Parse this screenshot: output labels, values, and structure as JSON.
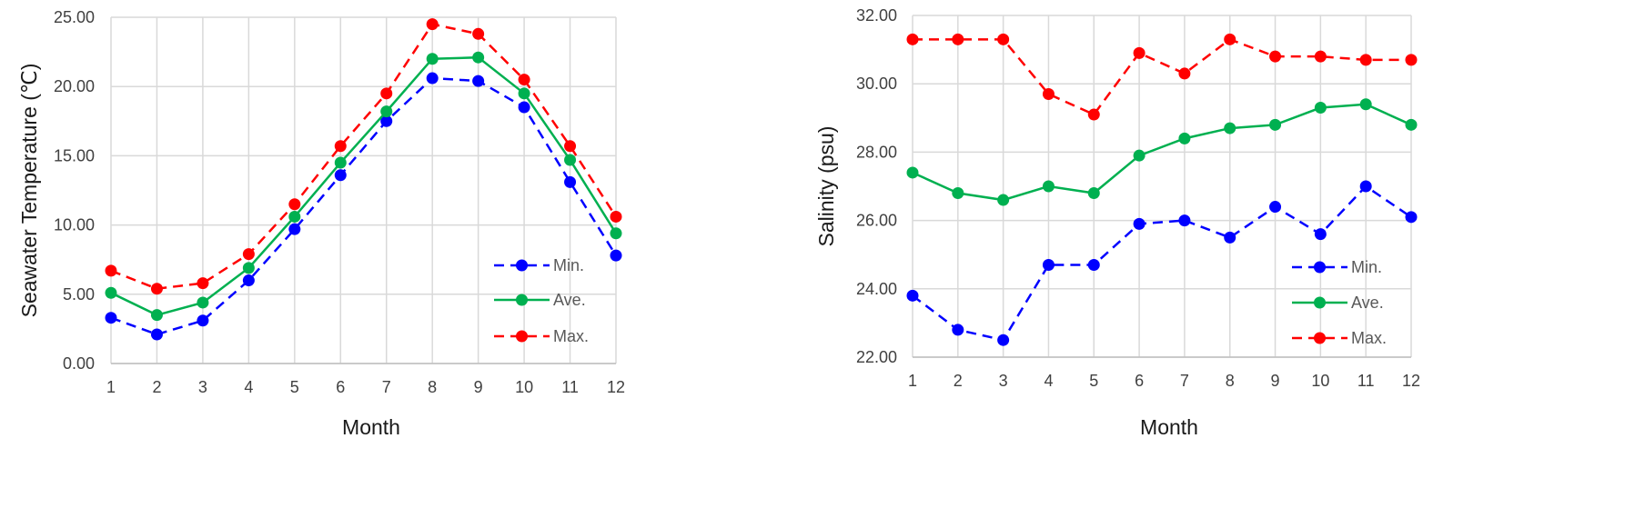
{
  "chart_data": [
    {
      "type": "line",
      "title": "",
      "xlabel": "Month",
      "ylabel": "Seawater Temperature (℃)",
      "categories": [
        "1",
        "2",
        "3",
        "4",
        "5",
        "6",
        "7",
        "8",
        "9",
        "10",
        "11",
        "12"
      ],
      "ylim": [
        0,
        25
      ],
      "yticks": [
        "0.00",
        "5.00",
        "10.00",
        "15.00",
        "20.00",
        "25.00"
      ],
      "grid": true,
      "legend": "bottom-right",
      "series": [
        {
          "name": "Min.",
          "color": "#0000ff",
          "dash": "dashed",
          "values": [
            3.3,
            2.1,
            3.1,
            6.0,
            9.7,
            13.6,
            17.5,
            20.6,
            20.4,
            18.5,
            13.1,
            7.8
          ]
        },
        {
          "name": "Ave.",
          "color": "#00b050",
          "dash": "solid",
          "values": [
            5.1,
            3.5,
            4.4,
            6.9,
            10.6,
            14.5,
            18.2,
            22.0,
            22.1,
            19.5,
            14.7,
            9.4
          ]
        },
        {
          "name": "Max.",
          "color": "#ff0000",
          "dash": "dashed",
          "values": [
            6.7,
            5.4,
            5.8,
            7.9,
            11.5,
            15.7,
            19.5,
            24.5,
            23.8,
            20.5,
            15.7,
            10.6
          ]
        }
      ]
    },
    {
      "type": "line",
      "title": "",
      "xlabel": "Month",
      "ylabel": "Salinity (psu)",
      "categories": [
        "1",
        "2",
        "3",
        "4",
        "5",
        "6",
        "7",
        "8",
        "9",
        "10",
        "11",
        "12"
      ],
      "ylim": [
        22,
        32
      ],
      "yticks": [
        "22.00",
        "24.00",
        "26.00",
        "28.00",
        "30.00",
        "32.00"
      ],
      "grid": true,
      "legend": "bottom-right",
      "series": [
        {
          "name": "Min.",
          "color": "#0000ff",
          "dash": "dashed",
          "values": [
            23.8,
            22.8,
            22.5,
            24.7,
            24.7,
            25.9,
            26.0,
            25.5,
            26.4,
            25.6,
            27.0,
            26.1
          ]
        },
        {
          "name": "Ave.",
          "color": "#00b050",
          "dash": "solid",
          "values": [
            27.4,
            26.8,
            26.6,
            27.0,
            26.8,
            27.9,
            28.4,
            28.7,
            28.8,
            29.3,
            29.4,
            28.8
          ]
        },
        {
          "name": "Max.",
          "color": "#ff0000",
          "dash": "dashed",
          "values": [
            31.3,
            31.3,
            31.3,
            29.7,
            29.1,
            30.9,
            30.3,
            31.3,
            30.8,
            30.8,
            30.7,
            30.7
          ]
        }
      ]
    }
  ]
}
